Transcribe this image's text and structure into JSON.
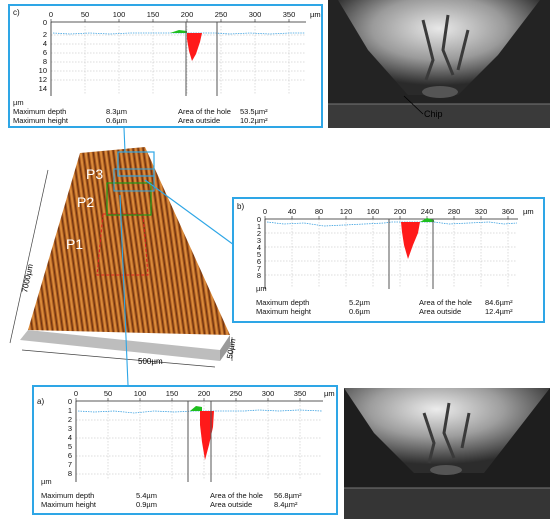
{
  "panels": {
    "c": {
      "label": "c)",
      "x_unit": "µm",
      "y_unit": "µm",
      "x_ticks": [
        "0",
        "50",
        "100",
        "150",
        "200",
        "250",
        "300",
        "350"
      ],
      "y_ticks": [
        "0",
        "2",
        "4",
        "6",
        "8",
        "10",
        "12",
        "14"
      ],
      "stats": {
        "max_depth_label": "Maximum depth",
        "max_depth_value": "8.3µm",
        "max_height_label": "Maximum height",
        "max_height_value": "0.6µm",
        "hole_area_label": "Area of the hole",
        "hole_area_value": "53.5µm²",
        "outside_area_label": "Area outside",
        "outside_area_value": "10.2µm²"
      }
    },
    "b": {
      "label": "b)",
      "x_unit": "µm",
      "y_unit": "µm",
      "x_ticks": [
        "0",
        "40",
        "80",
        "120",
        "160",
        "200",
        "240",
        "280",
        "320",
        "360"
      ],
      "y_ticks": [
        "0",
        "1",
        "2",
        "3",
        "4",
        "5",
        "6",
        "7",
        "8"
      ],
      "stats": {
        "max_depth_label": "Maximum depth",
        "max_depth_value": "5.2µm",
        "max_height_label": "Maximum height",
        "max_height_value": "0.6µm",
        "hole_area_label": "Area of the hole",
        "hole_area_value": "84.6µm²",
        "outside_area_label": "Area outside",
        "outside_area_value": "12.4µm²"
      }
    },
    "a": {
      "label": "a)",
      "x_unit": "µm",
      "y_unit": "µm",
      "x_ticks": [
        "0",
        "50",
        "100",
        "150",
        "200",
        "250",
        "300",
        "350"
      ],
      "y_ticks": [
        "0",
        "1",
        "2",
        "3",
        "4",
        "5",
        "6",
        "7",
        "8"
      ],
      "stats": {
        "max_depth_label": "Maximum depth",
        "max_depth_value": "5.4µm",
        "max_height_label": "Maximum height",
        "max_height_value": "0.9µm",
        "hole_area_label": "Area of the hole",
        "hole_area_value": "56.8µm²",
        "outside_area_label": "Area outside",
        "outside_area_value": "8.4µm²"
      }
    }
  },
  "surface": {
    "labels": [
      "P3",
      "P2",
      "P1"
    ],
    "dim_length": "7000µm",
    "dim_width": "500µm",
    "dim_depth": "50µm"
  },
  "chip_label": "Chip",
  "colors": {
    "panel_border": "#2ea6e6",
    "profile": "#3aa0e0",
    "hole": "#ff1a1a",
    "pileup": "#1fbf1f"
  }
}
